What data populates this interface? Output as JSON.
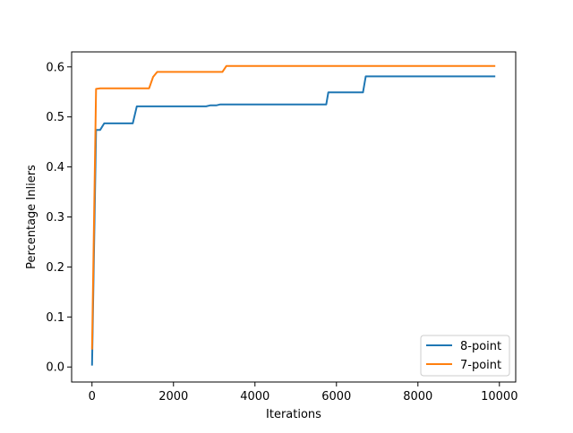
{
  "chart_data": {
    "type": "line",
    "title": "",
    "xlabel": "Iterations",
    "ylabel": "Percentage Inliers",
    "xlim": [
      -500,
      10400
    ],
    "ylim": [
      -0.03,
      0.63
    ],
    "xticks": [
      0,
      2000,
      4000,
      6000,
      8000,
      10000
    ],
    "xtick_labels": [
      "0",
      "2000",
      "4000",
      "6000",
      "8000",
      "10000"
    ],
    "yticks": [
      0.0,
      0.1,
      0.2,
      0.3,
      0.4,
      0.5,
      0.6
    ],
    "ytick_labels": [
      "0.0",
      "0.1",
      "0.2",
      "0.3",
      "0.4",
      "0.5",
      "0.6"
    ],
    "grid": false,
    "legend_position": "lower-right",
    "series": [
      {
        "name": "8-point",
        "color": "#1f77b4",
        "x": [
          0,
          100,
          200,
          300,
          1000,
          1100,
          2800,
          2900,
          3050,
          3150,
          5750,
          5800,
          6650,
          6720,
          9900
        ],
        "y": [
          0.003,
          0.474,
          0.474,
          0.487,
          0.487,
          0.521,
          0.521,
          0.523,
          0.523,
          0.525,
          0.525,
          0.549,
          0.549,
          0.581,
          0.581
        ]
      },
      {
        "name": "7-point",
        "color": "#ff7f0e",
        "x": [
          0,
          100,
          200,
          1400,
          1500,
          1600,
          3200,
          3300,
          9900
        ],
        "y": [
          0.035,
          0.556,
          0.557,
          0.557,
          0.58,
          0.59,
          0.59,
          0.602,
          0.602
        ]
      }
    ]
  }
}
